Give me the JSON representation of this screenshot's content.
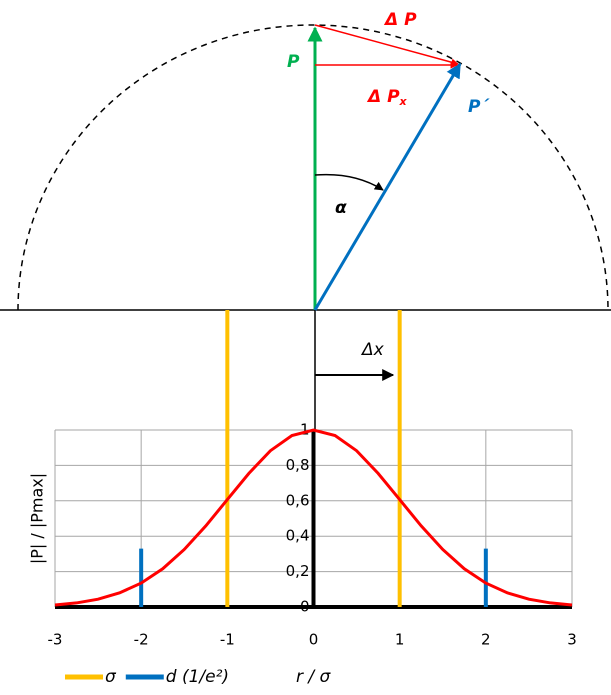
{
  "diagram": {
    "p": "P",
    "delta_p": "Δ P",
    "delta_px": {
      "main": "Δ P",
      "sub": "x"
    },
    "p_prime": "P´",
    "alpha": "α",
    "delta_x": "Δx"
  },
  "chart_data": {
    "type": "line",
    "x": [
      -3,
      -2.75,
      -2.5,
      -2.25,
      -2,
      -1.75,
      -1.5,
      -1.25,
      -1,
      -0.75,
      -0.5,
      -0.25,
      0,
      0.25,
      0.5,
      0.75,
      1,
      1.25,
      1.5,
      1.75,
      2,
      2.25,
      2.5,
      2.75,
      3
    ],
    "series": [
      {
        "color": "#ff0000",
        "values": [
          0.011,
          0.023,
          0.044,
          0.08,
          0.135,
          0.216,
          0.325,
          0.458,
          0.607,
          0.755,
          0.883,
          0.969,
          1,
          0.969,
          0.883,
          0.755,
          0.607,
          0.458,
          0.325,
          0.216,
          0.135,
          0.08,
          0.044,
          0.023,
          0.011
        ]
      }
    ],
    "markers": [
      {
        "name": "σ",
        "color": "#ffc000",
        "x": [
          -1,
          1
        ]
      },
      {
        "name": "d (1/e²)",
        "color": "#0070c0",
        "x": [
          -2,
          2
        ],
        "height": 0.33
      }
    ],
    "y_label": "|P| / |Pmax|",
    "x_label": "r / σ",
    "xlim": [
      -3,
      3
    ],
    "xticks": [
      -3,
      -2,
      -1,
      0,
      1,
      2,
      3
    ],
    "ylim": [
      0,
      1
    ],
    "yticks": [
      0,
      {
        "value": 0.2,
        "label": "0,2"
      },
      {
        "value": 0.4,
        "label": "0,4"
      },
      {
        "value": 0.6,
        "label": "0,6"
      },
      {
        "value": 0.8,
        "label": "0,8"
      },
      1
    ],
    "grid": true
  }
}
